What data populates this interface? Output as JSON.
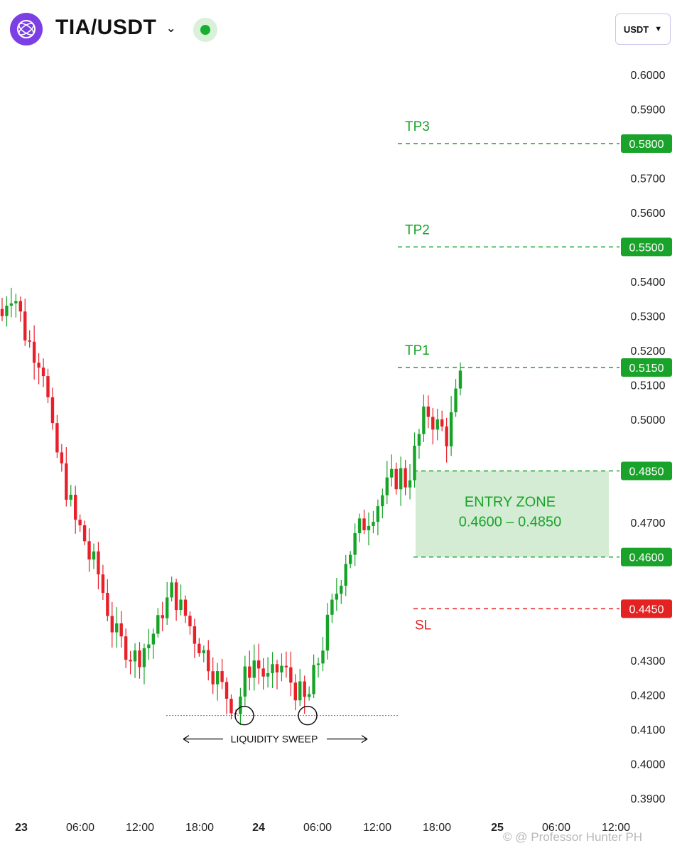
{
  "header": {
    "pair": "TIA/USDT",
    "quote_selector": "USDT",
    "logo_icon": "celestia-logo-icon",
    "live_indicator_color": "#17b02e"
  },
  "watermark": "© @ Professor Hunter PH",
  "colors": {
    "up": "#17a328",
    "down": "#e8202a",
    "target": "#1aa32a",
    "stop": "#e52222",
    "zone": "#d4ecd4"
  },
  "chart_data": {
    "type": "candlestick",
    "y_ticks": [
      "0.6000",
      "0.5900",
      "0.5700",
      "0.5600",
      "0.5400",
      "0.5300",
      "0.5200",
      "0.5100",
      "0.5000",
      "0.4700",
      "0.4300",
      "0.4200",
      "0.4100",
      "0.4000",
      "0.3900"
    ],
    "x_ticks": [
      "23",
      "06:00",
      "12:00",
      "18:00",
      "24",
      "06:00",
      "12:00",
      "18:00",
      "25",
      "06:00",
      "12:00"
    ],
    "levels": [
      {
        "label": "TP3",
        "value": 0.58,
        "tag": "0.5800",
        "kind": "target"
      },
      {
        "label": "TP2",
        "value": 0.55,
        "tag": "0.5500",
        "kind": "target"
      },
      {
        "label": "TP1",
        "value": 0.515,
        "tag": "0.5150",
        "kind": "target"
      },
      {
        "label": "",
        "value": 0.485,
        "tag": "0.4850",
        "kind": "target"
      },
      {
        "label": "",
        "value": 0.46,
        "tag": "0.4600",
        "kind": "target"
      },
      {
        "label": "SL",
        "value": 0.445,
        "tag": "0.4450",
        "kind": "stop"
      }
    ],
    "entry_zone": {
      "title": "ENTRY ZONE",
      "range": "0.4600 – 0.4850",
      "low": 0.46,
      "high": 0.485
    },
    "annotation": {
      "text": "LIQUIDITY SWEEP",
      "level": 0.414
    },
    "close_path": [
      0.53,
      0.535,
      0.537,
      0.535,
      0.53,
      0.525,
      0.522,
      0.52,
      0.518,
      0.515,
      0.505,
      0.495,
      0.49,
      0.485,
      0.48,
      0.475,
      0.47,
      0.468,
      0.465,
      0.46,
      0.458,
      0.455,
      0.45,
      0.445,
      0.44,
      0.437,
      0.435,
      0.434,
      0.432,
      0.431,
      0.432,
      0.434,
      0.435,
      0.438,
      0.44,
      0.445,
      0.447,
      0.45,
      0.448,
      0.445,
      0.443,
      0.44,
      0.437,
      0.435,
      0.432,
      0.43,
      0.427,
      0.425,
      0.422,
      0.42,
      0.418,
      0.416,
      0.42,
      0.425,
      0.428,
      0.43,
      0.428,
      0.426,
      0.424,
      0.425,
      0.427,
      0.428,
      0.426,
      0.424,
      0.422,
      0.42,
      0.418,
      0.42,
      0.425,
      0.43,
      0.435,
      0.44,
      0.445,
      0.45,
      0.455,
      0.46,
      0.462,
      0.465,
      0.468,
      0.47,
      0.472,
      0.474,
      0.476,
      0.478,
      0.48,
      0.482,
      0.483,
      0.484,
      0.482,
      0.485,
      0.49,
      0.495,
      0.5,
      0.502,
      0.5,
      0.498,
      0.497,
      0.495,
      0.5,
      0.506,
      0.511
    ]
  }
}
